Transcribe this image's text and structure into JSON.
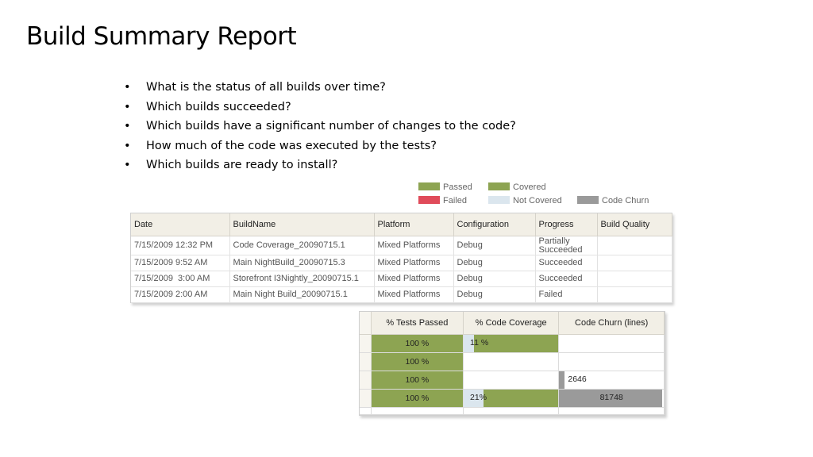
{
  "slide": {
    "title": "Build Summary Report",
    "bullets": [
      "What is the status of all builds over time?",
      "Which builds succeeded?",
      "Which builds have a significant number of changes to the code?",
      "How much of the code was executed by the tests?",
      "Which builds are ready to install?"
    ],
    "bullet_glyph": "•"
  },
  "legend": {
    "passed": "Passed",
    "failed": "Failed",
    "covered": "Covered",
    "not_covered": "Not Covered",
    "code_churn": "Code Churn",
    "colors": {
      "passed": "#8da452",
      "failed": "#e04b5a",
      "covered": "#8da452",
      "not_covered": "#dbe6ee",
      "code_churn": "#9a9a9a"
    }
  },
  "build_table": {
    "headers": [
      "Date",
      "BuildName",
      "Platform",
      "Configuration",
      "Progress",
      "Build Quality"
    ],
    "rows": [
      [
        "7/15/2009 12:32 PM",
        "Code Coverage_20090715.1",
        "Mixed Platforms",
        "Debug",
        "Partially Succeeded",
        ""
      ],
      [
        "7/15/2009 9:52 AM",
        "Main NightBuild_20090715.3",
        "Mixed Platforms",
        "Debug",
        "Succeeded",
        ""
      ],
      [
        "7/15/2009  3:00 AM",
        "Storefront I3Nightly_20090715.1",
        "Mixed Platforms",
        "Debug",
        "Succeeded",
        ""
      ],
      [
        "7/15/2009 2:00 AM",
        "Main Night Build_20090715.1",
        "Mixed Platforms",
        "Debug",
        "Failed",
        ""
      ]
    ]
  },
  "metrics_table": {
    "headers": [
      "% Tests Passed",
      "% Code Coverage",
      "Code Churn (lines)"
    ],
    "rows": [
      {
        "tests_passed": "100 %",
        "coverage_label": "11 %",
        "coverage_pct": 11,
        "churn_label": "",
        "churn_value": 0
      },
      {
        "tests_passed": "100 %",
        "coverage_label": "",
        "coverage_pct": null,
        "churn_label": "",
        "churn_value": 0
      },
      {
        "tests_passed": "100 %",
        "coverage_label": "",
        "coverage_pct": null,
        "churn_label": "2646",
        "churn_value": 2646
      },
      {
        "tests_passed": "100 %",
        "coverage_label": "21%",
        "coverage_pct": 21,
        "churn_label": "81748",
        "churn_value": 81748
      }
    ],
    "churn_max": 81748
  }
}
